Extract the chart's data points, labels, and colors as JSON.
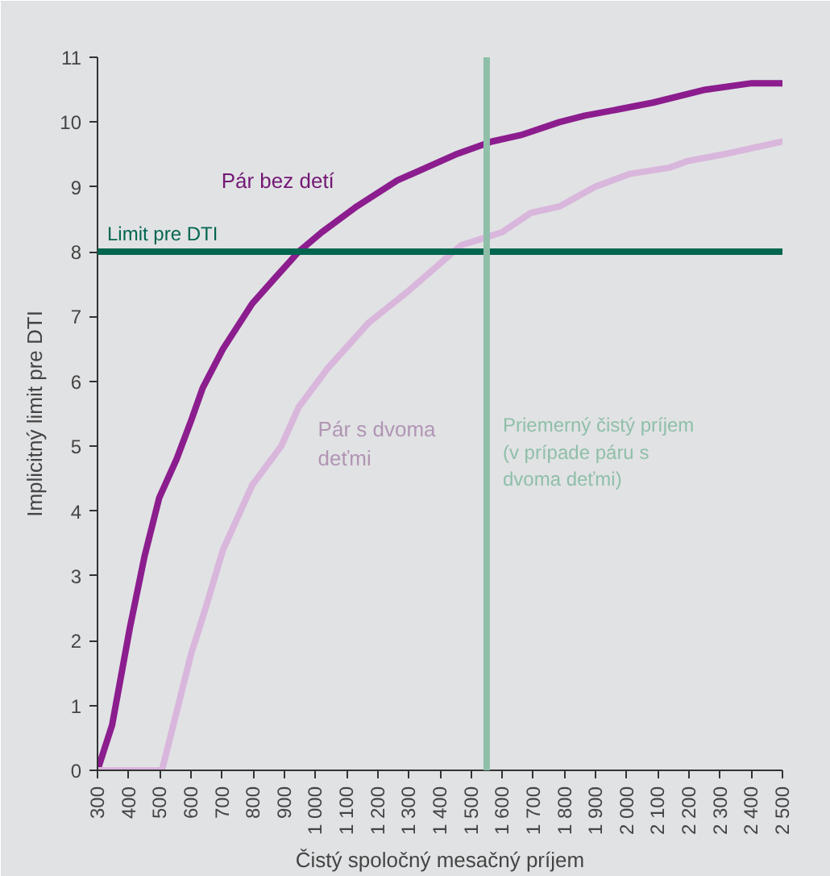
{
  "chart_data": {
    "type": "line",
    "xlabel": "Čistý spoločný mesačný príjem",
    "ylabel": "Implicitný limit pre DTI",
    "xlim": [
      300,
      2500
    ],
    "ylim": [
      0,
      11
    ],
    "xticks": [
      300,
      400,
      500,
      600,
      700,
      800,
      900,
      {
        "value": 1000,
        "label": "1 000"
      },
      {
        "value": 1100,
        "label": "1 100"
      },
      {
        "value": 1200,
        "label": "1 200"
      },
      {
        "value": 1300,
        "label": "1 300"
      },
      {
        "value": 1400,
        "label": "1 400"
      },
      {
        "value": 1500,
        "label": "1 500"
      },
      {
        "value": 1600,
        "label": "1 600"
      },
      {
        "value": 1700,
        "label": "1 700"
      },
      {
        "value": 1800,
        "label": "1 800"
      },
      {
        "value": 1900,
        "label": "1 900"
      },
      {
        "value": 2000,
        "label": "2 000"
      },
      {
        "value": 2100,
        "label": "2 100"
      },
      {
        "value": 2200,
        "label": "2 200"
      },
      {
        "value": 2300,
        "label": "2 300"
      },
      {
        "value": 2400,
        "label": "2 400"
      },
      {
        "value": 2500,
        "label": "2 500"
      }
    ],
    "yticks": [
      0,
      1,
      2,
      3,
      4,
      5,
      6,
      7,
      8,
      9,
      10,
      11
    ],
    "marker": "none",
    "line_style": "solid",
    "series": [
      {
        "name": "Pár bez detí",
        "color": "#8c1d8e",
        "x": [
          300,
          347,
          404,
          451,
          498,
          554,
          601,
          638,
          703,
          797,
          871,
          946,
          1020,
          1133,
          1263,
          1450,
          1566,
          1660,
          1784,
          1865,
          1977,
          2084,
          2252,
          2401,
          2500
        ],
        "values": [
          0,
          0.7,
          2.2,
          3.3,
          4.2,
          4.8,
          5.4,
          5.9,
          6.5,
          7.2,
          7.6,
          8.0,
          8.3,
          8.7,
          9.1,
          9.5,
          9.7,
          9.8,
          10.0,
          10.1,
          10.2,
          10.3,
          10.5,
          10.6,
          10.6
        ]
      },
      {
        "name": "Pár s dvoma deťmi",
        "color": "#d9b6dc",
        "x": [
          300,
          507,
          554,
          601,
          647,
          703,
          797,
          890,
          946,
          1039,
          1170,
          1300,
          1468,
          1599,
          1692,
          1785,
          1897,
          2009,
          2140,
          2196,
          2308,
          2500
        ],
        "values": [
          0,
          0,
          0.9,
          1.8,
          2.5,
          3.4,
          4.4,
          5.0,
          5.6,
          6.2,
          6.9,
          7.4,
          8.1,
          8.3,
          8.6,
          8.7,
          9.0,
          9.2,
          9.3,
          9.4,
          9.5,
          9.7
        ]
      }
    ],
    "ref_lines": [
      {
        "axis": "y",
        "value": 8,
        "label": "Limit pre DTI",
        "color": "#00664f",
        "line_style": "solid"
      },
      {
        "axis": "x",
        "value": 1550,
        "label": "Priemerný čistý príjem (v prípade páru s dvoma deťmi)",
        "color": "#8fbfa9",
        "line_style": "solid"
      }
    ]
  }
}
